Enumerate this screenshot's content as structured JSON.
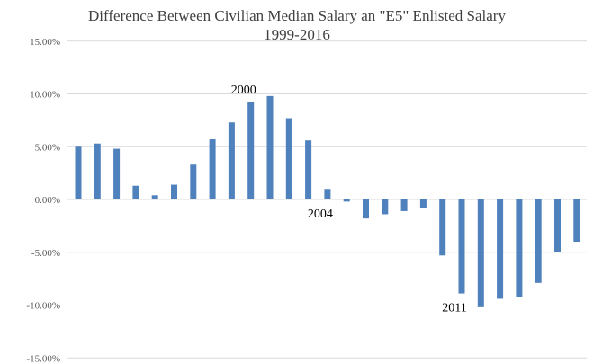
{
  "chart_data": {
    "type": "bar",
    "title_line1": "Difference Between Civilian Median Salary an \"E5\" Enlisted Salary",
    "title_line2": "1999-2016",
    "xlabel": "",
    "ylabel": "",
    "ylim": [
      -15,
      15
    ],
    "y_ticks": [
      {
        "value": 15,
        "label": "15.00%"
      },
      {
        "value": 10,
        "label": "10.00%"
      },
      {
        "value": 5,
        "label": "5.00%"
      },
      {
        "value": 0,
        "label": "0.00%"
      },
      {
        "value": -5,
        "label": "-5.00%"
      },
      {
        "value": -10,
        "label": "-10.00%"
      },
      {
        "value": -15,
        "label": "-15.00%"
      }
    ],
    "grid": true,
    "legend": "none",
    "bar_color": "#4F81BD",
    "values": [
      5.0,
      5.3,
      4.8,
      1.3,
      0.4,
      1.4,
      3.3,
      5.7,
      7.3,
      9.2,
      9.8,
      7.7,
      5.6,
      1.0,
      -0.2,
      -1.8,
      -1.4,
      -1.1,
      -0.8,
      -5.3,
      -8.9,
      -10.2,
      -9.4,
      -9.2,
      -7.9,
      -5.0,
      -4.0
    ],
    "annotations": [
      {
        "text": "2000",
        "bar_index": 9,
        "position": "above"
      },
      {
        "text": "2004",
        "bar_index": 13,
        "position": "below"
      },
      {
        "text": "2011",
        "bar_index": 20,
        "position": "below"
      }
    ]
  }
}
